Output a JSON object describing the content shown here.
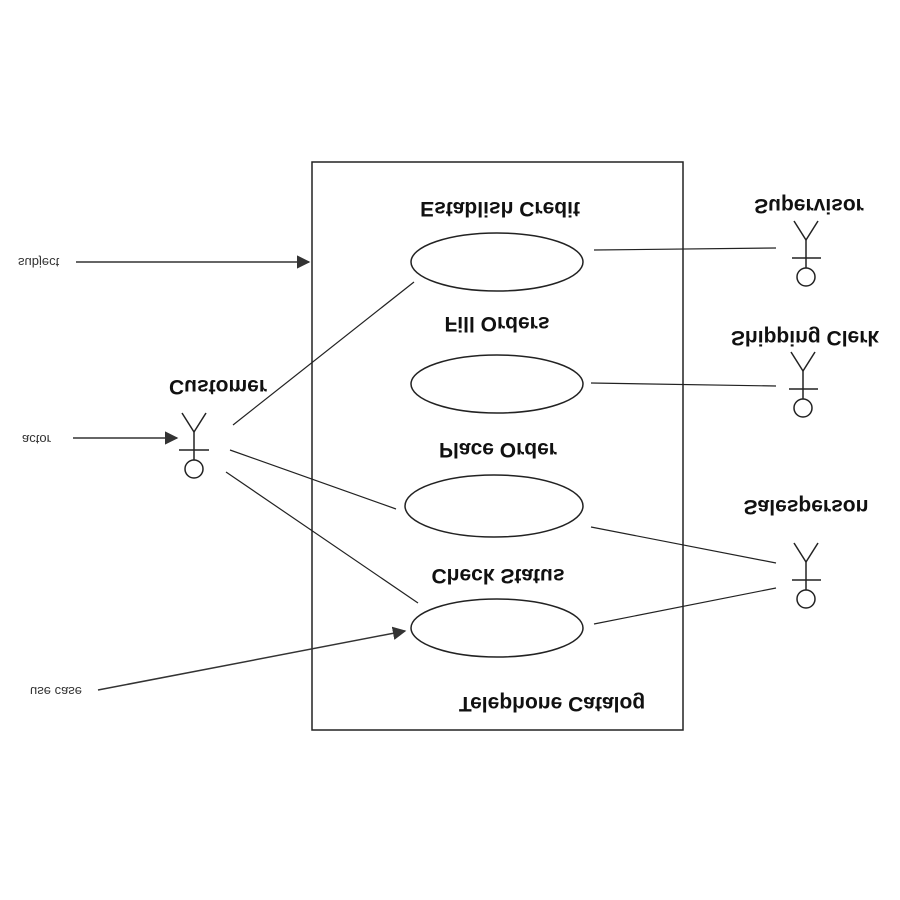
{
  "diagram": {
    "system": {
      "name": "Telephone Catalog"
    },
    "use_cases": [
      {
        "id": "establish",
        "label": "Establish Credit"
      },
      {
        "id": "fill",
        "label": "Fill Orders"
      },
      {
        "id": "place",
        "label": "Place Order"
      },
      {
        "id": "check",
        "label": "Check Status"
      }
    ],
    "actors": [
      {
        "id": "customer",
        "label": "Customer"
      },
      {
        "id": "supervisor",
        "label": "Supervisor"
      },
      {
        "id": "shipping",
        "label": "Shipping Clerk"
      },
      {
        "id": "salesperson",
        "label": "Salesperson"
      }
    ],
    "annotations": {
      "subject": "subject",
      "actor": "actor",
      "use_case": "use case"
    },
    "note": "Entire picture is mirrored vertically (upside-down text)"
  }
}
